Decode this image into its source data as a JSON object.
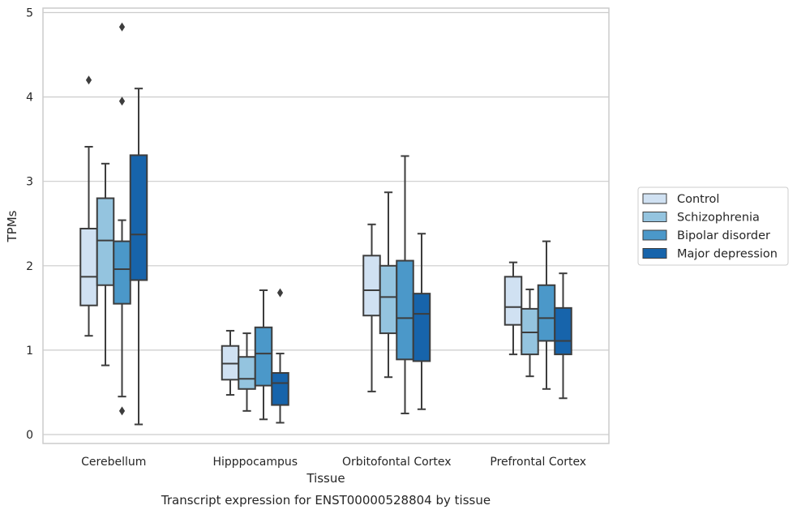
{
  "chart_data": {
    "type": "box",
    "caption": "Transcript expression for ENST00000528804 by tissue",
    "xlabel": "Tissue",
    "ylabel": "TPMs",
    "ylim": [
      -0.1,
      5.1
    ],
    "yticks": [
      0,
      1,
      2,
      3,
      4,
      5
    ],
    "grid": "horizontal",
    "legend_position": "right",
    "categories": [
      "Cerebellum",
      "Hipppocampus",
      "Orbitofontal Cortex",
      "Prefrontal Cortex"
    ],
    "series": [
      {
        "name": "Control",
        "color": "#d0e1f2",
        "boxes": [
          {
            "whislo": 1.17,
            "q1": 1.53,
            "med": 1.87,
            "q3": 2.44,
            "whishi": 3.41,
            "fliers": [
              4.2
            ]
          },
          {
            "whislo": 0.47,
            "q1": 0.65,
            "med": 0.84,
            "q3": 1.05,
            "whishi": 1.23,
            "fliers": []
          },
          {
            "whislo": 0.51,
            "q1": 1.41,
            "med": 1.71,
            "q3": 2.12,
            "whishi": 2.49,
            "fliers": []
          },
          {
            "whislo": 0.95,
            "q1": 1.3,
            "med": 1.51,
            "q3": 1.87,
            "whishi": 2.04,
            "fliers": []
          }
        ]
      },
      {
        "name": "Schizophrenia",
        "color": "#94c4df",
        "boxes": [
          {
            "whislo": 0.82,
            "q1": 1.77,
            "med": 2.3,
            "q3": 2.8,
            "whishi": 3.21,
            "fliers": []
          },
          {
            "whislo": 0.28,
            "q1": 0.54,
            "med": 0.66,
            "q3": 0.92,
            "whishi": 1.2,
            "fliers": []
          },
          {
            "whislo": 0.68,
            "q1": 1.2,
            "med": 1.63,
            "q3": 2.0,
            "whishi": 2.87,
            "fliers": []
          },
          {
            "whislo": 0.69,
            "q1": 0.95,
            "med": 1.21,
            "q3": 1.49,
            "whishi": 1.72,
            "fliers": []
          }
        ]
      },
      {
        "name": "Bipolar disorder",
        "color": "#4b98c9",
        "boxes": [
          {
            "whislo": 0.45,
            "q1": 1.55,
            "med": 1.96,
            "q3": 2.29,
            "whishi": 2.54,
            "fliers": [
              3.95,
              4.83,
              0.28
            ]
          },
          {
            "whislo": 0.18,
            "q1": 0.58,
            "med": 0.96,
            "q3": 1.27,
            "whishi": 1.71,
            "fliers": []
          },
          {
            "whislo": 0.25,
            "q1": 0.89,
            "med": 1.38,
            "q3": 2.06,
            "whishi": 3.3,
            "fliers": []
          },
          {
            "whislo": 0.54,
            "q1": 1.11,
            "med": 1.38,
            "q3": 1.77,
            "whishi": 2.29,
            "fliers": []
          }
        ]
      },
      {
        "name": "Major depression",
        "color": "#1764ab",
        "boxes": [
          {
            "whislo": 0.12,
            "q1": 1.83,
            "med": 2.37,
            "q3": 3.31,
            "whishi": 4.1,
            "fliers": []
          },
          {
            "whislo": 0.14,
            "q1": 0.35,
            "med": 0.61,
            "q3": 0.73,
            "whishi": 0.96,
            "fliers": [
              1.68
            ]
          },
          {
            "whislo": 0.3,
            "q1": 0.87,
            "med": 1.43,
            "q3": 1.67,
            "whishi": 2.38,
            "fliers": []
          },
          {
            "whislo": 0.43,
            "q1": 0.95,
            "med": 1.11,
            "q3": 1.5,
            "whishi": 1.91,
            "fliers": []
          }
        ]
      }
    ]
  }
}
